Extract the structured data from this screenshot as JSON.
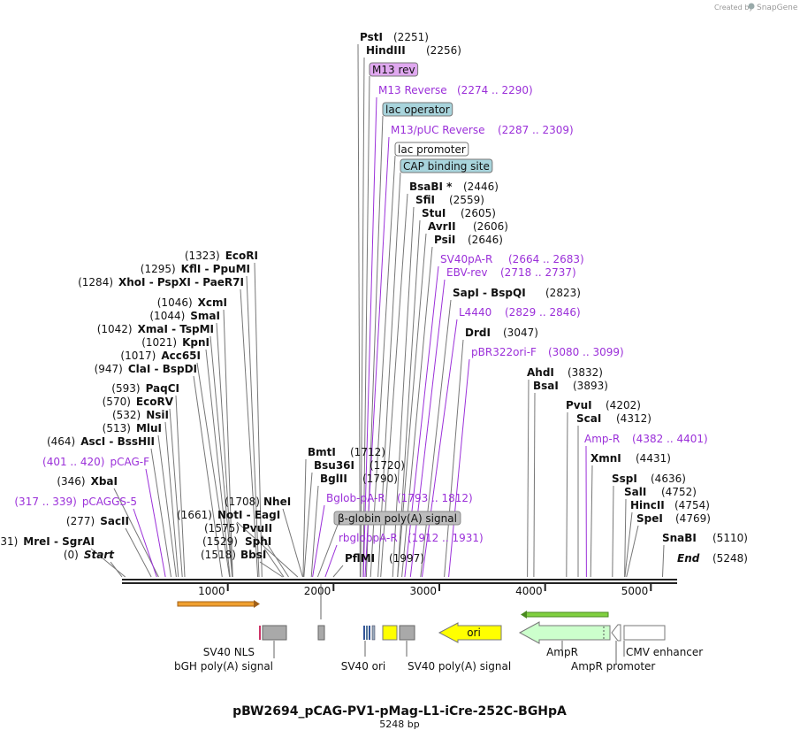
{
  "app": {
    "watermark": "Created by",
    "brand": "SnapGene"
  },
  "plasmid": {
    "name": "pBW2694_pCAG-PV1-pMag-L1-iCre-252C-BGHpA",
    "length": "5248 bp"
  },
  "colors": {
    "feature_text": "#9b30d9",
    "enzyme_line": "#777777",
    "feature_line": "#9b30d9",
    "ori": "#ffff00",
    "ampr": "#ccffcc",
    "grey_feature": "#a9a9a9",
    "cap_box": "#a8d4dc",
    "m13_box": "#e0a8f0",
    "orange_arrow": "#f0a030",
    "green_arrow": "#80d040"
  },
  "scale": {
    "ticks": [
      "1000",
      "2000",
      "3000",
      "4000",
      "5000"
    ]
  },
  "left_enzymes": [
    {
      "pos": "(1323)",
      "name": "EcoRI",
      "site": 1323
    },
    {
      "pos": "(1295)",
      "name": "KflI  -  PpuMI",
      "site": 1295
    },
    {
      "pos": "(1284)",
      "name": "XhoI  -  PspXI  -  PaeR7I",
      "site": 1284
    },
    {
      "pos": "(1046)",
      "name": "XcmI",
      "site": 1046
    },
    {
      "pos": "(1044)",
      "name": "SmaI",
      "site": 1044
    },
    {
      "pos": "(1042)",
      "name": "XmaI  -  TspMI",
      "site": 1042
    },
    {
      "pos": "(1021)",
      "name": "KpnI",
      "site": 1021
    },
    {
      "pos": "(1017)",
      "name": "Acc65I",
      "site": 1017
    },
    {
      "pos": "(947)",
      "name": "ClaI  -  BspDI",
      "site": 947
    },
    {
      "pos": "(593)",
      "name": "PaqCI",
      "site": 593
    },
    {
      "pos": "(570)",
      "name": "EcoRV",
      "site": 570
    },
    {
      "pos": "(532)",
      "name": "NsiI",
      "site": 532
    },
    {
      "pos": "(513)",
      "name": "MluI",
      "site": 513
    },
    {
      "pos": "(464)",
      "name": "AscI  -  BssHII",
      "site": 464
    },
    {
      "pos": "(401 .. 420)",
      "name": "pCAG-F",
      "site": 410,
      "feature": true
    },
    {
      "pos": "(346)",
      "name": "XbaI",
      "site": 346
    },
    {
      "pos": "(317 .. 339)",
      "name": "pCAGGS-5",
      "site": 328,
      "feature": true
    },
    {
      "pos": "(277)",
      "name": "SacII",
      "site": 277
    },
    {
      "pos": "(31)",
      "name": "MreI  -  SgrAI",
      "site": 31
    },
    {
      "pos": "(0)",
      "name": "Start",
      "site": 0,
      "italic": true
    }
  ],
  "mid_enzymes": [
    {
      "name": "NheI",
      "pos": "(1708)",
      "site": 1708
    },
    {
      "name": "NotI  -  EagI",
      "pos": "(1661)",
      "site": 1661
    },
    {
      "name": "PvuII",
      "pos": "(1575)",
      "site": 1575
    },
    {
      "name": "SphI",
      "pos": "(1529)",
      "site": 1529
    },
    {
      "name": "BbsI",
      "pos": "(1518)",
      "site": 1518
    }
  ],
  "center_enzymes": [
    {
      "name": "BmtI",
      "pos": "(1712)",
      "site": 1712
    },
    {
      "name": "Bsu36I",
      "pos": "(1720)",
      "site": 1720
    },
    {
      "name": "BglII",
      "pos": "(1790)",
      "site": 1790
    },
    {
      "name": "Bglob-pA-R",
      "pos": "(1793 .. 1812)",
      "site": 1802,
      "feature": true
    },
    {
      "name": "β-globin poly(A) signal",
      "pos": "",
      "site": 1850,
      "box": "grey"
    },
    {
      "name": "rbglobpA-R",
      "pos": "(1912 .. 1931)",
      "site": 1921,
      "feature": true
    },
    {
      "name": "PflMI",
      "pos": "(1997)",
      "site": 1997
    }
  ],
  "top_enzymes": [
    {
      "name": "PstI",
      "pos": "(2251)",
      "site": 2251
    },
    {
      "name": "HindIII",
      "pos": "(2256)",
      "site": 2256
    },
    {
      "name": "M13 rev",
      "pos": "",
      "site": 2280,
      "box": "m13"
    },
    {
      "name": "M13 Reverse",
      "pos": "(2274 .. 2290)",
      "site": 2282,
      "feature": true
    },
    {
      "name": "lac operator",
      "pos": "",
      "site": 2310,
      "box": "cap"
    },
    {
      "name": "M13/pUC Reverse",
      "pos": "(2287 .. 2309)",
      "site": 2298,
      "feature": true
    },
    {
      "name": "lac promoter",
      "pos": "",
      "site": 2350,
      "box": "white"
    },
    {
      "name": "CAP binding site",
      "pos": "",
      "site": 2420,
      "box": "cap"
    },
    {
      "name": "BsaBI *",
      "pos": "(2446)",
      "site": 2446
    },
    {
      "name": "SfiI",
      "pos": "(2559)",
      "site": 2559
    },
    {
      "name": "StuI",
      "pos": "(2605)",
      "site": 2605
    },
    {
      "name": "AvrII",
      "pos": "(2606)",
      "site": 2606
    },
    {
      "name": "PsiI",
      "pos": "(2646)",
      "site": 2646
    },
    {
      "name": "SV40pA-R",
      "pos": "(2664 .. 2683)",
      "site": 2673,
      "feature": true
    },
    {
      "name": "EBV-rev",
      "pos": "(2718 .. 2737)",
      "site": 2727,
      "feature": true
    },
    {
      "name": "SapI  -  BspQI",
      "pos": "(2823)",
      "site": 2823
    },
    {
      "name": "L4440",
      "pos": "(2829 .. 2846)",
      "site": 2837,
      "feature": true
    },
    {
      "name": "DrdI",
      "pos": "(3047)",
      "site": 3047
    },
    {
      "name": "pBR322ori-F",
      "pos": "(3080 .. 3099)",
      "site": 3089,
      "feature": true
    }
  ],
  "right_enzymes": [
    {
      "name": "AhdI",
      "pos": "(3832)",
      "site": 3832
    },
    {
      "name": "BsaI",
      "pos": "(3893)",
      "site": 3893
    },
    {
      "name": "PvuI",
      "pos": "(4202)",
      "site": 4202
    },
    {
      "name": "ScaI",
      "pos": "(4312)",
      "site": 4312
    },
    {
      "name": "Amp-R",
      "pos": "(4382 .. 4401)",
      "site": 4391,
      "feature": true
    },
    {
      "name": "XmnI",
      "pos": "(4431)",
      "site": 4431
    },
    {
      "name": "SspI",
      "pos": "(4636)",
      "site": 4636
    },
    {
      "name": "SalI",
      "pos": "(4752)",
      "site": 4752
    },
    {
      "name": "HincII",
      "pos": "(4754)",
      "site": 4754
    },
    {
      "name": "SpeI",
      "pos": "(4769)",
      "site": 4769
    },
    {
      "name": "SnaBI",
      "pos": "(5110)",
      "site": 5110
    },
    {
      "name": "End",
      "pos": "(5248)",
      "site": 5248,
      "italic": true
    }
  ],
  "features_below": [
    {
      "label": "SV40 NLS"
    },
    {
      "label": "bGH poly(A) signal"
    },
    {
      "label": "SV40 ori"
    },
    {
      "label": "SV40 poly(A) signal"
    },
    {
      "label": "ori"
    },
    {
      "label": "AmpR"
    },
    {
      "label": "AmpR promoter"
    },
    {
      "label": "CMV enhancer"
    }
  ]
}
